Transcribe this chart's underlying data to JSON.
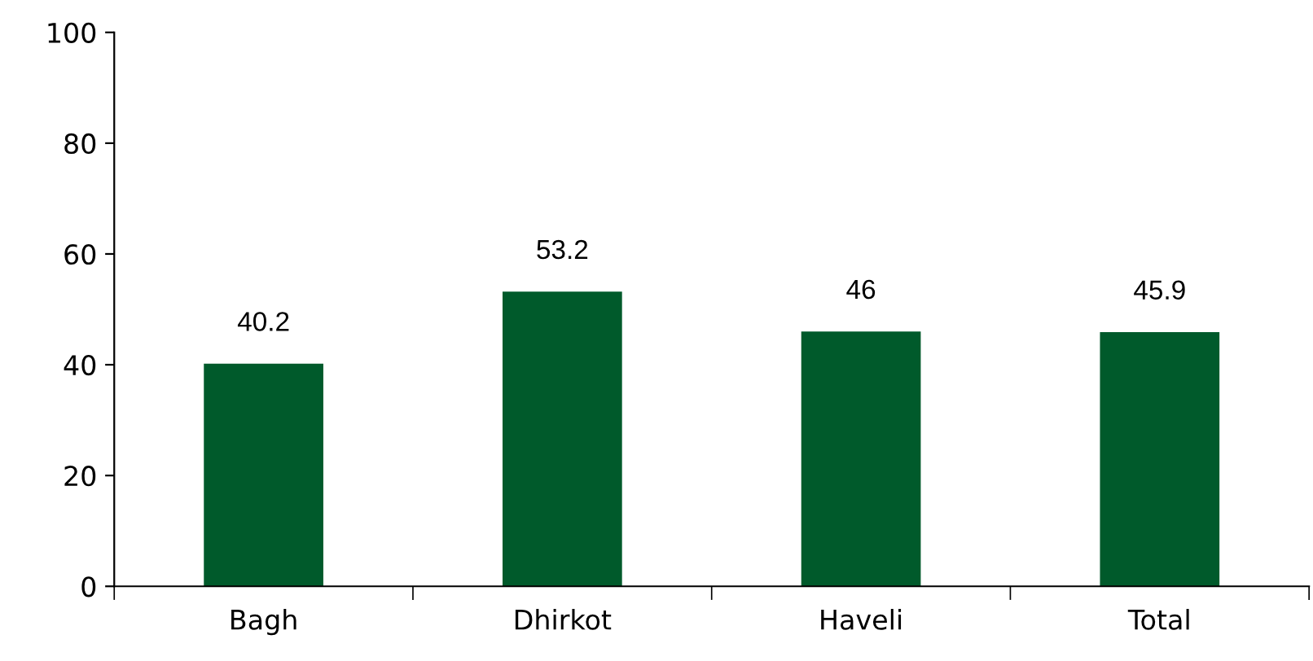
{
  "chart_data": {
    "type": "bar",
    "categories": [
      "Bagh",
      "Dhirkot",
      "Haveli",
      "Total"
    ],
    "values": [
      40.2,
      53.2,
      46,
      45.9
    ],
    "color": "#005a2b",
    "ylim": [
      0,
      100
    ],
    "yticks": [
      0,
      20,
      40,
      60,
      80,
      100
    ],
    "grid": false,
    "data_labels": true
  }
}
